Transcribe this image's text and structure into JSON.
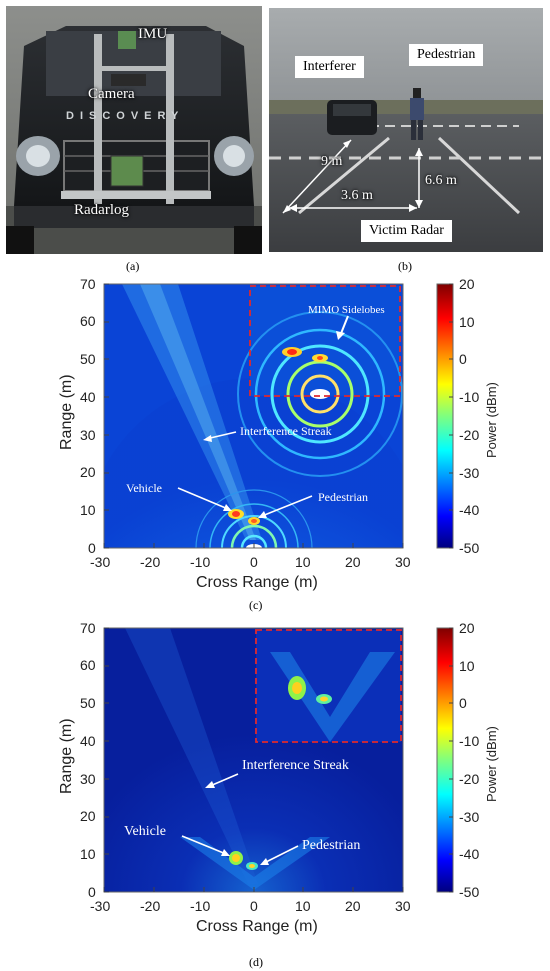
{
  "panel_a": {
    "label_imu": "IMU",
    "label_camera": "Camera",
    "label_radarlog": "Radarlog",
    "grille_text": "DISCOVERY",
    "caption": "(a)"
  },
  "panel_b": {
    "label_interferer": "Interferer",
    "label_pedestrian": "Pedestrian",
    "label_victim": "Victim Radar",
    "dist_9": "9 m",
    "dist_36": "3.6 m",
    "dist_66": "6.6 m",
    "caption": "(b)"
  },
  "plot_c": {
    "caption": "(c)",
    "xlabel": "Cross Range (m)",
    "ylabel": "Range (m)",
    "colorbar_label": "Power (dBm)",
    "xticks": [
      "-30",
      "-20",
      "-10",
      "0",
      "10",
      "20",
      "30"
    ],
    "yticks": [
      "0",
      "10",
      "20",
      "30",
      "40",
      "50",
      "60",
      "70"
    ],
    "cticks": [
      "20",
      "10",
      "0",
      "-10",
      "-20",
      "-30",
      "-40",
      "-50"
    ],
    "annot_sidelobes": "MIMO Sidelobes",
    "annot_streak": "Interference Streak",
    "annot_vehicle": "Vehicle",
    "annot_pedestrian": "Pedestrian"
  },
  "plot_d": {
    "caption": "(d)",
    "xlabel": "Cross Range (m)",
    "ylabel": "Range (m)",
    "colorbar_label": "Power (dBm)",
    "xticks": [
      "-30",
      "-20",
      "-10",
      "0",
      "10",
      "20",
      "30"
    ],
    "yticks": [
      "0",
      "10",
      "20",
      "30",
      "40",
      "50",
      "60",
      "70"
    ],
    "cticks": [
      "20",
      "10",
      "0",
      "-10",
      "-20",
      "-30",
      "-40",
      "-50"
    ],
    "annot_streak": "Interference Streak",
    "annot_vehicle": "Vehicle",
    "annot_pedestrian": "Pedestrian"
  },
  "chart_data": [
    {
      "type": "heatmap",
      "xlabel": "Cross Range (m)",
      "ylabel": "Range (m)",
      "xlim": [
        -30,
        30
      ],
      "ylim": [
        0,
        70
      ],
      "clim": [
        -50,
        20
      ],
      "colorbar_label": "Power (dBm)",
      "colormap": "jet",
      "annotations": [
        {
          "text": "MIMO Sidelobes",
          "x": 10,
          "y": 62
        },
        {
          "text": "Interference Streak",
          "x": 2,
          "y": 31
        },
        {
          "text": "Vehicle",
          "x": -16,
          "y": 15
        },
        {
          "text": "Pedestrian",
          "x": 9,
          "y": 12
        }
      ],
      "targets": [
        {
          "name": "Vehicle",
          "x": -3.6,
          "y": 9
        },
        {
          "name": "Pedestrian",
          "x": 0,
          "y": 6.6
        }
      ]
    },
    {
      "type": "heatmap",
      "xlabel": "Cross Range (m)",
      "ylabel": "Range (m)",
      "xlim": [
        -30,
        30
      ],
      "ylim": [
        0,
        70
      ],
      "clim": [
        -50,
        20
      ],
      "colorbar_label": "Power (dBm)",
      "colormap": "jet",
      "annotations": [
        {
          "text": "Interference Streak",
          "x": 2,
          "y": 32
        },
        {
          "text": "Vehicle",
          "x": -16,
          "y": 17
        },
        {
          "text": "Pedestrian",
          "x": 8,
          "y": 12
        }
      ],
      "targets": [
        {
          "name": "Vehicle",
          "x": -3.6,
          "y": 9
        },
        {
          "name": "Pedestrian",
          "x": 0,
          "y": 6.6
        }
      ]
    }
  ]
}
